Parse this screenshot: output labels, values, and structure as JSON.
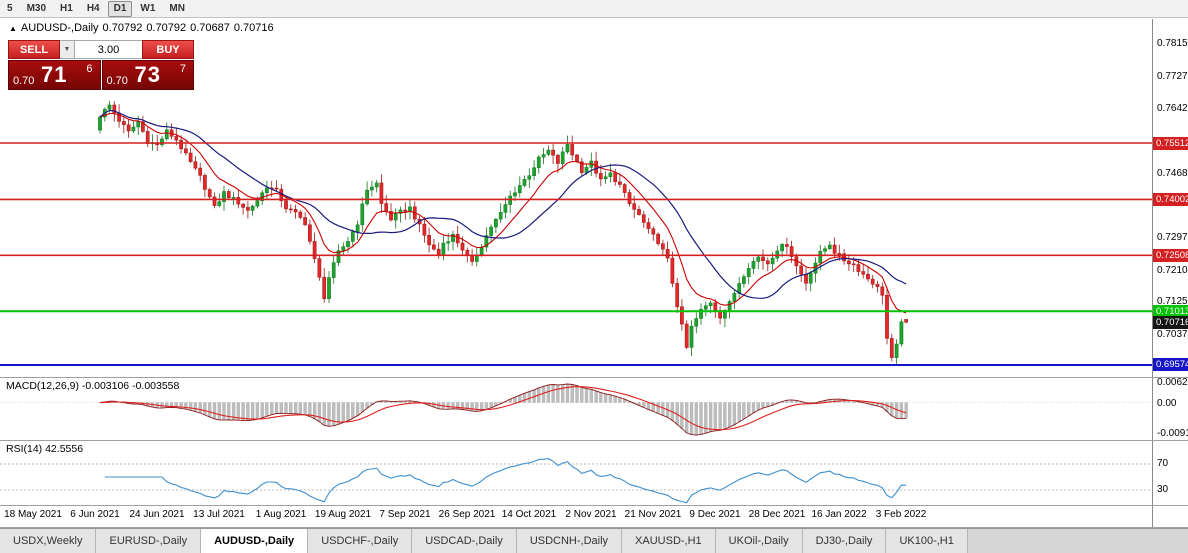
{
  "toolbar": {
    "timeframes": [
      {
        "label": "5",
        "active": false
      },
      {
        "label": "M30",
        "active": false
      },
      {
        "label": "H1",
        "active": false
      },
      {
        "label": "H4",
        "active": false
      },
      {
        "label": "D1",
        "active": true
      },
      {
        "label": "W1",
        "active": false
      },
      {
        "label": "MN",
        "active": false
      }
    ]
  },
  "chart_header": {
    "symbol": "AUDUSD-,Daily",
    "open": "0.70792",
    "high": "0.70792",
    "low": "0.70687",
    "close": "0.70716"
  },
  "trade_widget": {
    "sell_label": "SELL",
    "buy_label": "BUY",
    "volume": "3.00",
    "dropdown_icon": "▼",
    "bid": {
      "prefix": "0.70",
      "big": "71",
      "sup": "6"
    },
    "ask": {
      "prefix": "0.70",
      "big": "73",
      "sup": "7"
    }
  },
  "price_axis": {
    "ticks": [
      {
        "label": "0.7815",
        "value": 0.7815
      },
      {
        "label": "0.7727",
        "value": 0.7727
      },
      {
        "label": "0.7642",
        "value": 0.7642
      },
      {
        "label": "0.7468",
        "value": 0.7468
      },
      {
        "label": "0.7297",
        "value": 0.7297
      },
      {
        "label": "0.7210",
        "value": 0.721
      },
      {
        "label": "0.7125",
        "value": 0.7125
      },
      {
        "label": "0.7037",
        "value": 0.7037
      }
    ],
    "levels": [
      {
        "label": "0.75512",
        "value": 0.75512,
        "color": "#d42020"
      },
      {
        "label": "0.74002",
        "value": 0.74002,
        "color": "#d42020"
      },
      {
        "label": "0.72508",
        "value": 0.72508,
        "color": "#d42020"
      },
      {
        "label": "0.71013",
        "value": 0.71013,
        "color": "#00c400"
      },
      {
        "label": "0.69574",
        "value": 0.69574,
        "color": "#1616c8"
      }
    ],
    "current": {
      "label": "0.70716",
      "value": 0.70716,
      "color": "#161616"
    }
  },
  "macd_panel": {
    "label": "MACD(12,26,9) -0.003106 -0.003558",
    "axis_labels": [
      "0.00620",
      "0.00",
      "-0.00919"
    ]
  },
  "rsi_panel": {
    "label": "RSI(14) 42.5556",
    "levels": [
      70,
      30
    ]
  },
  "date_axis": {
    "labels": [
      "18 May 2021",
      "6 Jun 2021",
      "24 Jun 2021",
      "13 Jul 2021",
      "1 Aug 2021",
      "19 Aug 2021",
      "7 Sep 2021",
      "26 Sep 2021",
      "14 Oct 2021",
      "2 Nov 2021",
      "21 Nov 2021",
      "9 Dec 2021",
      "28 Dec 2021",
      "16 Jan 2022",
      "3 Feb 2022"
    ]
  },
  "tabs": [
    {
      "label": "USDX,Weekly",
      "active": false
    },
    {
      "label": "EURUSD-,Daily",
      "active": false
    },
    {
      "label": "AUDUSD-,Daily",
      "active": true
    },
    {
      "label": "USDCHF-,Daily",
      "active": false
    },
    {
      "label": "USDCAD-,Daily",
      "active": false
    },
    {
      "label": "USDCNH-,Daily",
      "active": false
    },
    {
      "label": "XAUUSD-,H1",
      "active": false
    },
    {
      "label": "UKOil-,Daily",
      "active": false
    },
    {
      "label": "DJ30-,Daily",
      "active": false
    },
    {
      "label": "UK100-,H1",
      "active": false
    }
  ],
  "colors": {
    "candle_up": "#1ea32e",
    "candle_up_stroke": "#12751e",
    "candle_down": "#e22828",
    "candle_down_stroke": "#9c1717",
    "ma_fast": "#cc0000",
    "ma_slow": "#1a1a7e",
    "macd_hist": "#bdbdbd",
    "macd_signal": "#e02020",
    "macd_main": "#8b1a1a",
    "rsi_line": "#3c8fd0",
    "divider": "#a0a0a0",
    "level_dash": "#bdbdbd"
  },
  "chart_data": {
    "type": "candlestick",
    "symbol": "AUDUSD",
    "timeframe": "Daily",
    "candles": 170,
    "price_range_visible": [
      0.6925,
      0.7883
    ],
    "horizontal_levels": [
      0.75512,
      0.74002,
      0.72508,
      0.71013,
      0.69574
    ],
    "last_candle": {
      "open": 0.70792,
      "high": 0.70792,
      "low": 0.70687,
      "close": 0.70716
    },
    "indicators": {
      "ma_fast": {
        "type": "EMA",
        "period": 10
      },
      "ma_slow": {
        "type": "SMA",
        "period": 20
      },
      "macd": {
        "fast": 12,
        "slow": 26,
        "signal": 9,
        "main_value": -0.003106,
        "signal_value": -0.003558,
        "axis_values": [
          0.0062,
          0,
          -0.00919
        ]
      },
      "rsi": {
        "period": 14,
        "value": 42.5556,
        "levels": [
          70,
          30
        ]
      }
    },
    "close_anchors": [
      [
        0,
        0.7625
      ],
      [
        2,
        0.7652
      ],
      [
        4,
        0.7612
      ],
      [
        6,
        0.758
      ],
      [
        8,
        0.7608
      ],
      [
        10,
        0.7556
      ],
      [
        12,
        0.7545
      ],
      [
        14,
        0.7582
      ],
      [
        16,
        0.756
      ],
      [
        18,
        0.7518
      ],
      [
        21,
        0.746
      ],
      [
        24,
        0.7378
      ],
      [
        26,
        0.7418
      ],
      [
        29,
        0.7392
      ],
      [
        31,
        0.737
      ],
      [
        33,
        0.7398
      ],
      [
        35,
        0.7436
      ],
      [
        37,
        0.7422
      ],
      [
        39,
        0.7378
      ],
      [
        41,
        0.7362
      ],
      [
        43,
        0.7338
      ],
      [
        45,
        0.7238
      ],
      [
        47,
        0.714
      ],
      [
        48,
        0.7192
      ],
      [
        50,
        0.7258
      ],
      [
        52,
        0.729
      ],
      [
        54,
        0.7338
      ],
      [
        56,
        0.7428
      ],
      [
        58,
        0.7443
      ],
      [
        59,
        0.7388
      ],
      [
        61,
        0.7348
      ],
      [
        63,
        0.7366
      ],
      [
        65,
        0.7378
      ],
      [
        67,
        0.7328
      ],
      [
        69,
        0.728
      ],
      [
        71,
        0.7252
      ],
      [
        72,
        0.7284
      ],
      [
        74,
        0.7304
      ],
      [
        76,
        0.7268
      ],
      [
        78,
        0.7228
      ],
      [
        80,
        0.7278
      ],
      [
        82,
        0.7328
      ],
      [
        84,
        0.7362
      ],
      [
        86,
        0.7408
      ],
      [
        88,
        0.7438
      ],
      [
        90,
        0.7468
      ],
      [
        92,
        0.7508
      ],
      [
        94,
        0.753
      ],
      [
        96,
        0.7498
      ],
      [
        98,
        0.7548
      ],
      [
        99,
        0.7522
      ],
      [
        101,
        0.7478
      ],
      [
        103,
        0.7498
      ],
      [
        105,
        0.745
      ],
      [
        107,
        0.7468
      ],
      [
        109,
        0.7438
      ],
      [
        111,
        0.7388
      ],
      [
        113,
        0.7358
      ],
      [
        115,
        0.7316
      ],
      [
        117,
        0.7288
      ],
      [
        119,
        0.7238
      ],
      [
        121,
        0.7118
      ],
      [
        123,
        0.7003
      ],
      [
        124,
        0.7058
      ],
      [
        126,
        0.7103
      ],
      [
        128,
        0.7126
      ],
      [
        130,
        0.7088
      ],
      [
        132,
        0.7122
      ],
      [
        134,
        0.7178
      ],
      [
        136,
        0.7222
      ],
      [
        138,
        0.7246
      ],
      [
        140,
        0.723
      ],
      [
        142,
        0.7268
      ],
      [
        144,
        0.728
      ],
      [
        146,
        0.7222
      ],
      [
        148,
        0.7178
      ],
      [
        149,
        0.7208
      ],
      [
        151,
        0.7256
      ],
      [
        153,
        0.7282
      ],
      [
        154,
        0.726
      ],
      [
        156,
        0.7238
      ],
      [
        158,
        0.7226
      ],
      [
        160,
        0.72
      ],
      [
        162,
        0.7178
      ],
      [
        164,
        0.7148
      ],
      [
        165,
        0.7028
      ],
      [
        166,
        0.6972
      ],
      [
        167,
        0.7008
      ],
      [
        168,
        0.7078
      ],
      [
        169,
        0.70716
      ]
    ]
  }
}
